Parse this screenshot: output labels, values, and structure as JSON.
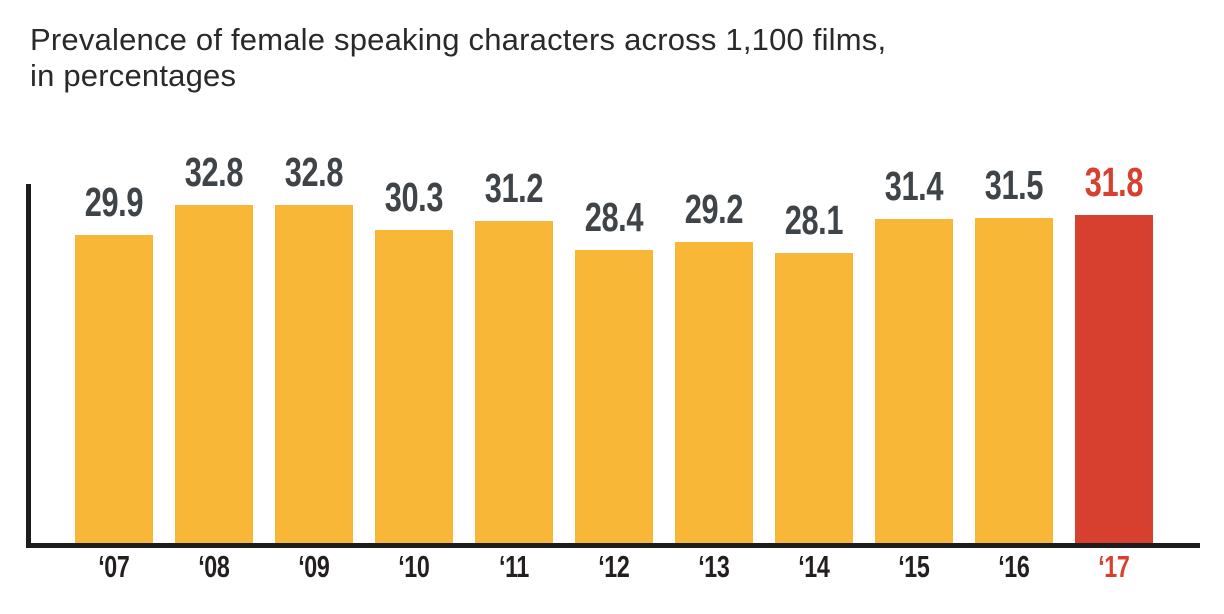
{
  "header": {
    "title_lines": [
      "Prevalence of female speaking characters across 1,100 films,",
      "in percentages"
    ],
    "title_color": "#2b2828"
  },
  "chart_data": {
    "type": "bar",
    "title": "Prevalence of female speaking characters across 1,100 films, in percentages",
    "categories": [
      "‘07",
      "‘08",
      "‘09",
      "‘10",
      "‘11",
      "‘12",
      "‘13",
      "‘14",
      "‘15",
      "‘16",
      "‘17"
    ],
    "values": [
      29.9,
      32.8,
      32.8,
      30.3,
      31.2,
      28.4,
      29.2,
      28.1,
      31.4,
      31.5,
      31.8
    ],
    "value_labels": [
      "29.9",
      "32.8",
      "32.8",
      "30.3",
      "31.2",
      "28.4",
      "29.2",
      "28.1",
      "31.4",
      "31.5",
      "31.8"
    ],
    "xlabel": "",
    "ylabel": "",
    "ylim": [
      0,
      35
    ],
    "grid": false,
    "legend": "none",
    "highlight_index": 10,
    "colors": {
      "bar": "#F8B737",
      "highlight_bar": "#D7402E",
      "value_label": "#3F4448",
      "highlight_value_label": "#D7402E",
      "tick_label": "#231F20",
      "highlight_tick_label": "#D7402E",
      "axis": "#1d1b1b"
    }
  }
}
